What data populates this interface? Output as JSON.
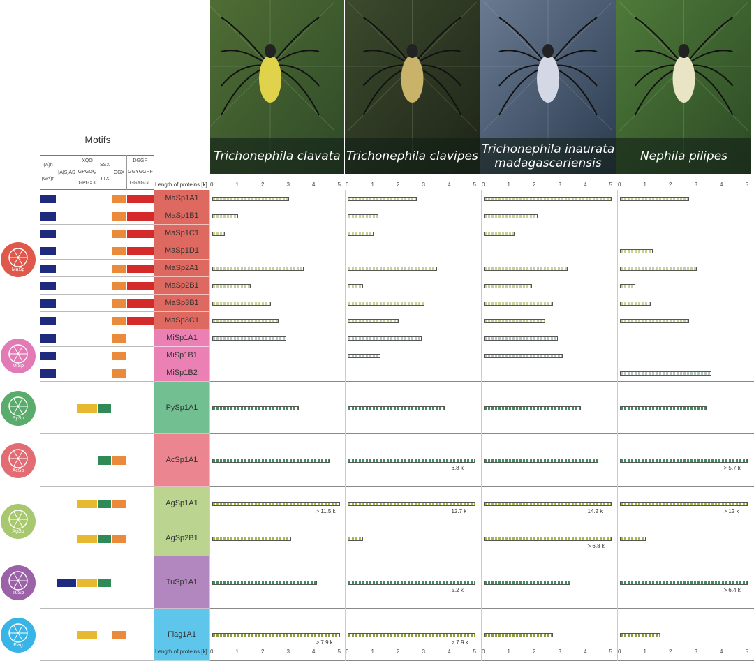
{
  "species": [
    {
      "name": "Trichonephila clavata",
      "photo_colors": [
        "#2e4a28",
        "#4f6d34",
        "#e0d24a"
      ]
    },
    {
      "name": "Trichonephila clavipes",
      "photo_colors": [
        "#1e2418",
        "#3c4a2c",
        "#c9b36a"
      ]
    },
    {
      "name": "Trichonephila inaurata madagascariensis",
      "photo_colors": [
        "#2a3a4e",
        "#6a7a92",
        "#d4d8e4"
      ]
    },
    {
      "name": "Nephila pilipes",
      "photo_colors": [
        "#2c4a24",
        "#4f7a3a",
        "#e8e4c4"
      ]
    }
  ],
  "motifs": {
    "title": "Motifs",
    "columns": [
      {
        "lines": [
          "(A)n",
          "(GA)n"
        ]
      },
      {
        "lines": [
          "[A|S]AS"
        ]
      },
      {
        "lines": [
          "XQQ",
          "GPGQQ",
          "GPGXX"
        ]
      },
      {
        "lines": [
          "SSX",
          "TTX"
        ]
      },
      {
        "lines": [
          "GGX"
        ]
      },
      {
        "lines": [
          "DGGR",
          "GGYGGRF",
          "GGYGGL"
        ]
      }
    ]
  },
  "axis": {
    "label": "Length of proteins [k]",
    "ticks": [
      "0",
      "1",
      "2",
      "3",
      "4",
      "5"
    ]
  },
  "classes": [
    {
      "name": "MaSp",
      "color": "#d94f45",
      "icon_color": "#e0574b"
    },
    {
      "name": "MiSp",
      "color": "#e86aa8",
      "icon_color": "#e27bb5"
    },
    {
      "name": "PySp",
      "color": "#5ab580",
      "icon_color": "#5aac6c"
    },
    {
      "name": "AcSp",
      "color": "#e8707c",
      "icon_color": "#e36c74"
    },
    {
      "name": "AgSp",
      "color": "#b0cd7c",
      "icon_color": "#a8c870"
    },
    {
      "name": "TuSp",
      "color": "#a572b4",
      "icon_color": "#9b62a8"
    },
    {
      "name": "Flag",
      "color": "#44bde8",
      "icon_color": "#38b4e6"
    }
  ],
  "proteins": [
    {
      "name": "MaSp1A1",
      "class": "MaSp",
      "lengths": [
        3.0,
        2.7,
        5.0,
        2.7
      ]
    },
    {
      "name": "MaSp1B1",
      "class": "MaSp",
      "lengths": [
        1.0,
        1.2,
        2.1,
        null
      ]
    },
    {
      "name": "MaSp1C1",
      "class": "MaSp",
      "lengths": [
        0.5,
        1.0,
        1.2,
        null
      ]
    },
    {
      "name": "MaSp1D1",
      "class": "MaSp",
      "lengths": [
        null,
        null,
        null,
        1.3
      ]
    },
    {
      "name": "MaSp2A1",
      "class": "MaSp",
      "lengths": [
        3.6,
        3.5,
        3.3,
        3.0
      ]
    },
    {
      "name": "MaSp2B1",
      "class": "MaSp",
      "lengths": [
        1.5,
        0.6,
        1.9,
        0.6
      ]
    },
    {
      "name": "MaSp3B1",
      "class": "MaSp",
      "lengths": [
        2.3,
        3.0,
        2.7,
        1.2
      ]
    },
    {
      "name": "MaSp3C1",
      "class": "MaSp",
      "lengths": [
        2.6,
        2.0,
        2.4,
        2.7
      ]
    },
    {
      "name": "MiSp1A1",
      "class": "MiSp",
      "lengths": [
        2.9,
        2.9,
        2.9,
        null
      ]
    },
    {
      "name": "MiSp1B1",
      "class": "MiSp",
      "lengths": [
        null,
        1.3,
        3.1,
        null
      ]
    },
    {
      "name": "MiSp1B2",
      "class": "MiSp",
      "lengths": [
        null,
        null,
        null,
        3.6
      ]
    },
    {
      "name": "PySp1A1",
      "class": "PySp",
      "lengths": [
        3.4,
        3.8,
        3.8,
        3.4
      ]
    },
    {
      "name": "AcSp1A1",
      "class": "AcSp",
      "lengths": [
        4.6,
        5.0,
        4.5,
        5.0
      ],
      "notes": [
        "",
        "6.8 k",
        "",
        "> 5.7 k"
      ]
    },
    {
      "name": "AgSp1A1",
      "class": "AgSp",
      "lengths": [
        5.0,
        5.0,
        5.0,
        5.0
      ],
      "notes": [
        "> 11.5 k",
        "12.7 k",
        "14.2 k",
        "> 12 k"
      ]
    },
    {
      "name": "AgSp2B1",
      "class": "AgSp",
      "lengths": [
        3.1,
        0.6,
        5.0,
        1.0
      ],
      "notes": [
        "",
        "",
        "> 6.8 k",
        ""
      ]
    },
    {
      "name": "TuSp1A1",
      "class": "TuSp",
      "lengths": [
        4.1,
        5.0,
        3.4,
        5.0
      ],
      "notes": [
        "",
        "5.2 k",
        "",
        "> 6.4 k"
      ]
    },
    {
      "name": "Flag1A1",
      "class": "Flag",
      "lengths": [
        5.0,
        5.0,
        2.7,
        1.6
      ],
      "notes": [
        "> 7.9 k",
        "> 7.9 k",
        "",
        ""
      ]
    }
  ]
}
